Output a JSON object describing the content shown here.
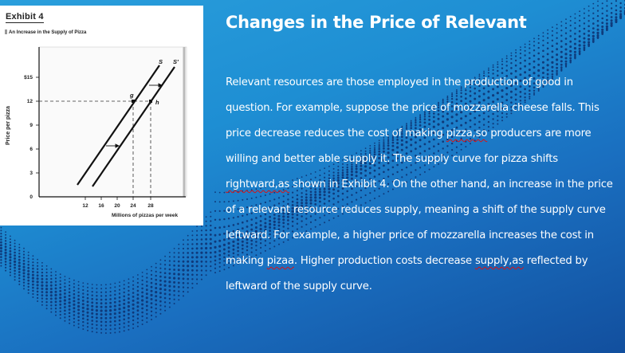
{
  "slide": {
    "title": "Changes in the Price of Relevant",
    "paragraph": [
      {
        "text": "Relevant  resources are those employed in the production of good in question. For example, suppose the price of mozzarella cheese falls. This price decrease reduces the cost of making ",
        "spell": false
      },
      {
        "text": "pizza,so",
        "spell": true
      },
      {
        "text": " producers are more willing and better able supply it. The supply curve for pizza shifts ",
        "spell": false
      },
      {
        "text": "rightward,as",
        "spell": true
      },
      {
        "text": " shown in Exhibit 4.  On the other hand, an increase in the price of a relevant resource reduces supply, meaning a shift of the supply curve leftward. For example, a higher price of mozzarella increases the cost in making ",
        "spell": false
      },
      {
        "text": "pizaa",
        "spell": true
      },
      {
        "text": ". Higher production costs decrease ",
        "spell": false
      },
      {
        "text": "supply,as",
        "spell": true
      },
      {
        "text": " reflected by leftward of the supply curve.",
        "spell": false
      }
    ]
  },
  "exhibit": {
    "label": "Exhibit 4",
    "subtitle": "An Increase in the Supply of Pizza"
  },
  "chart_data": {
    "type": "line",
    "title": "An Increase in the Supply of Pizza",
    "xlabel": "Millions of pizzas per week",
    "ylabel": "Price per pizza",
    "x_ticks": [
      "12",
      "16",
      "20",
      "24",
      "28"
    ],
    "y_ticks": [
      "0",
      "3",
      "6",
      "9",
      "12",
      "$15"
    ],
    "xlim": [
      0,
      36
    ],
    "ylim": [
      0,
      18
    ],
    "series": [
      {
        "name": "S",
        "points": [
          [
            11,
            1.5
          ],
          [
            24,
            12
          ],
          [
            27.5,
            16.5
          ]
        ]
      },
      {
        "name": "S'",
        "points": [
          [
            14,
            1.2
          ],
          [
            28,
            12
          ],
          [
            31.5,
            16.5
          ]
        ]
      }
    ],
    "annotations": [
      {
        "label": "g",
        "x": 24,
        "y": 12
      },
      {
        "label": "h",
        "x": 28,
        "y": 12
      },
      {
        "label": "arrow-right",
        "note": "rightward shift arrows between S and S'"
      }
    ],
    "grid": false,
    "legend": "none (curve labels S and S' at top)"
  }
}
